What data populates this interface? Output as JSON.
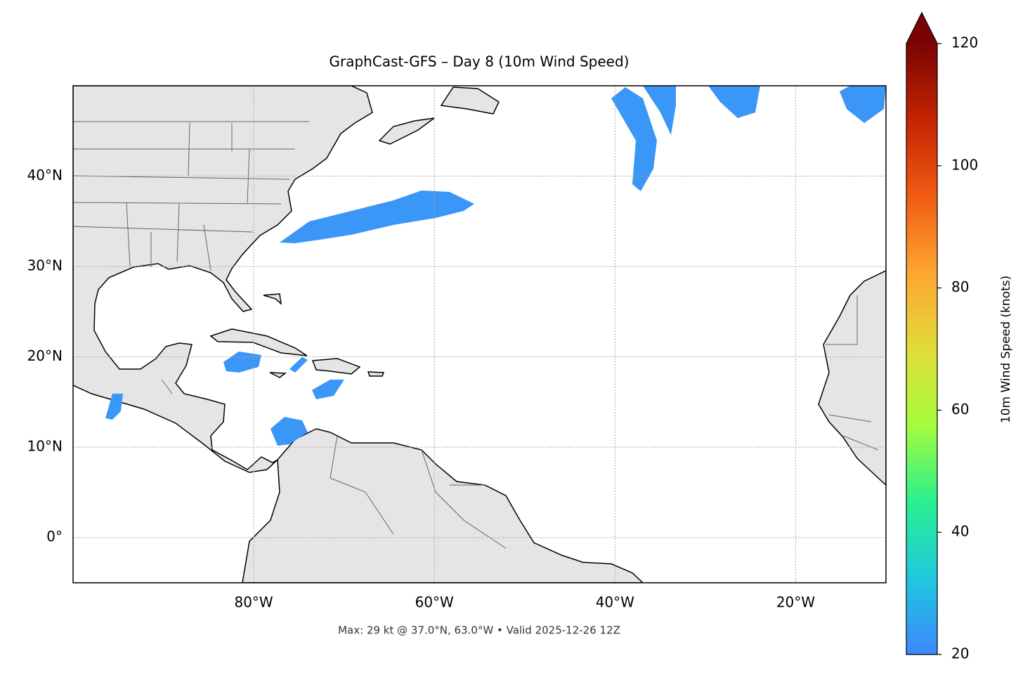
{
  "chart_data": {
    "type": "map",
    "title": "GraphCast-GFS – Day 8 (10m Wind Speed)",
    "footer": "Max: 29 kt @ 37.0°N, 63.0°W • Valid 2025-12-26 12Z",
    "xlim": [
      -100,
      -10
    ],
    "ylim": [
      -5,
      50
    ],
    "xticks": [
      {
        "value": -80,
        "label": "80°W"
      },
      {
        "value": -60,
        "label": "60°W"
      },
      {
        "value": -40,
        "label": "40°W"
      },
      {
        "value": -20,
        "label": "20°W"
      }
    ],
    "yticks": [
      {
        "value": 0,
        "label": "0°"
      },
      {
        "value": 10,
        "label": "10°N"
      },
      {
        "value": 20,
        "label": "20°N"
      },
      {
        "value": 30,
        "label": "30°N"
      },
      {
        "value": 40,
        "label": "40°N"
      }
    ],
    "grid": true,
    "colorbar": {
      "label": "10m Wind Speed (knots)",
      "lim": [
        20,
        120
      ],
      "ticks": [
        20,
        40,
        60,
        80,
        100,
        120
      ],
      "colors": [
        "#3d87ff",
        "#1fc8de",
        "#2af08f",
        "#a4fc3c",
        "#e2dc38",
        "#fea632",
        "#f05b12",
        "#c42503",
        "#7a0403"
      ]
    }
  }
}
